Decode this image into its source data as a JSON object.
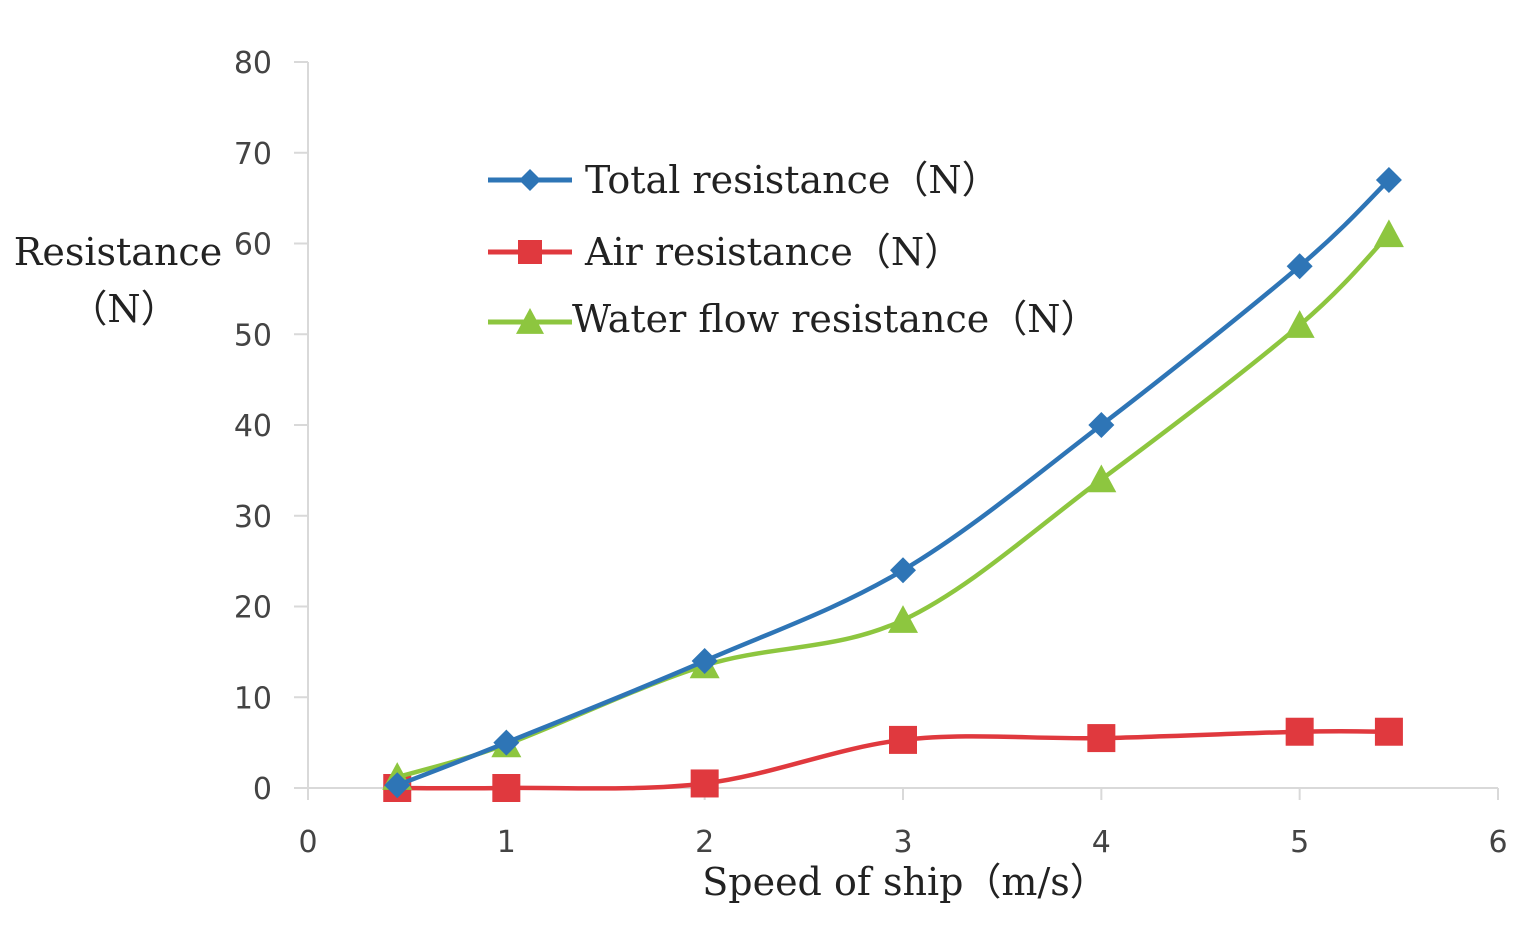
{
  "chart_data": {
    "type": "line",
    "title": "",
    "xlabel": "Speed of ship（m/s）",
    "ylabel": [
      "Resistance",
      "（N）"
    ],
    "xlim": [
      0,
      6
    ],
    "ylim": [
      0,
      80
    ],
    "x_ticks": [
      0,
      1,
      2,
      3,
      4,
      5,
      6
    ],
    "y_ticks": [
      0,
      10,
      20,
      30,
      40,
      50,
      60,
      70,
      80
    ],
    "grid": false,
    "legend_position": "upper-middle",
    "series": [
      {
        "name": "Total resistance（N）",
        "color": "#2E75B6",
        "marker": "diamond",
        "x": [
          0.45,
          1,
          2,
          3,
          4,
          5,
          5.45
        ],
        "values": [
          0.3,
          5,
          14,
          24,
          40,
          57.5,
          67
        ]
      },
      {
        "name": "Air resistance（N）",
        "color": "#E0393E",
        "marker": "square",
        "x": [
          0.45,
          1,
          2,
          3,
          4,
          5,
          5.45
        ],
        "values": [
          0,
          0,
          0.5,
          5.3,
          5.5,
          6.2,
          6.2
        ]
      },
      {
        "name": "Water flow resistance（N）",
        "color": "#8DC63F",
        "marker": "triangle",
        "x": [
          0.45,
          1,
          2,
          3,
          4,
          5,
          5.45
        ],
        "values": [
          1.2,
          4.8,
          13.5,
          18.5,
          34,
          51,
          61
        ]
      }
    ]
  }
}
